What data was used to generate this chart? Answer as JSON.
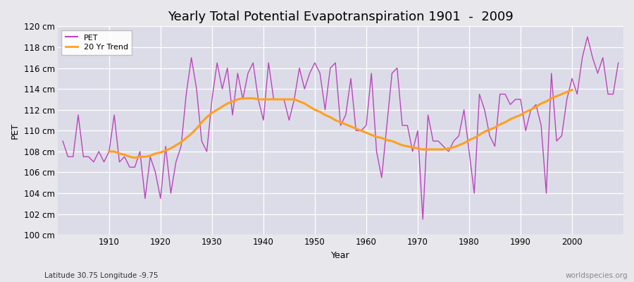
{
  "title": "Yearly Total Potential Evapotranspiration 1901  -  2009",
  "xlabel": "Year",
  "ylabel": "PET",
  "subtitle": "Latitude 30.75 Longitude -9.75",
  "watermark": "worldspecies.org",
  "years": [
    1901,
    1902,
    1903,
    1904,
    1905,
    1906,
    1907,
    1908,
    1909,
    1910,
    1911,
    1912,
    1913,
    1914,
    1915,
    1916,
    1917,
    1918,
    1919,
    1920,
    1921,
    1922,
    1923,
    1924,
    1925,
    1926,
    1927,
    1928,
    1929,
    1930,
    1931,
    1932,
    1933,
    1934,
    1935,
    1936,
    1937,
    1938,
    1939,
    1940,
    1941,
    1942,
    1943,
    1944,
    1945,
    1946,
    1947,
    1948,
    1949,
    1950,
    1951,
    1952,
    1953,
    1954,
    1955,
    1956,
    1957,
    1958,
    1959,
    1960,
    1961,
    1962,
    1963,
    1964,
    1965,
    1966,
    1967,
    1968,
    1969,
    1970,
    1971,
    1972,
    1973,
    1974,
    1975,
    1976,
    1977,
    1978,
    1979,
    1980,
    1981,
    1982,
    1983,
    1984,
    1985,
    1986,
    1987,
    1988,
    1989,
    1990,
    1991,
    1992,
    1993,
    1994,
    1995,
    1996,
    1997,
    1998,
    1999,
    2000,
    2001,
    2002,
    2003,
    2004,
    2005,
    2006,
    2007,
    2008,
    2009
  ],
  "pet": [
    109.0,
    107.5,
    107.5,
    111.5,
    107.5,
    107.5,
    107.0,
    108.0,
    107.0,
    108.0,
    111.5,
    107.0,
    107.5,
    106.5,
    106.5,
    108.0,
    103.5,
    107.5,
    106.0,
    103.5,
    108.5,
    104.0,
    107.0,
    108.5,
    113.5,
    117.0,
    114.0,
    109.0,
    108.0,
    113.0,
    116.5,
    114.0,
    116.0,
    111.5,
    115.5,
    113.0,
    115.5,
    116.5,
    113.0,
    111.0,
    116.5,
    113.0,
    113.0,
    113.0,
    111.0,
    113.0,
    116.0,
    114.0,
    115.5,
    116.5,
    115.5,
    112.0,
    116.0,
    116.5,
    110.5,
    111.5,
    115.0,
    110.0,
    110.0,
    110.5,
    115.5,
    108.0,
    105.5,
    110.5,
    115.5,
    116.0,
    110.5,
    110.5,
    108.0,
    110.0,
    101.5,
    111.5,
    109.0,
    109.0,
    108.5,
    108.0,
    109.0,
    109.5,
    112.0,
    108.0,
    104.0,
    113.5,
    112.0,
    109.5,
    108.5,
    113.5,
    113.5,
    112.5,
    113.0,
    113.0,
    110.0,
    112.0,
    112.5,
    110.5,
    104.0,
    115.5,
    109.0,
    109.5,
    113.0,
    115.0,
    113.5,
    117.0,
    119.0,
    117.0,
    115.5,
    117.0,
    113.5,
    113.5,
    116.5
  ],
  "trend": [
    null,
    null,
    null,
    null,
    null,
    null,
    null,
    null,
    null,
    108.0,
    108.0,
    107.8,
    107.7,
    107.5,
    107.4,
    107.5,
    107.5,
    107.6,
    107.8,
    107.9,
    108.1,
    108.3,
    108.6,
    108.9,
    109.3,
    109.7,
    110.2,
    110.8,
    111.3,
    111.7,
    112.0,
    112.3,
    112.6,
    112.8,
    113.0,
    113.1,
    113.1,
    113.1,
    113.0,
    113.0,
    113.0,
    113.0,
    113.0,
    113.0,
    113.0,
    113.0,
    112.8,
    112.6,
    112.3,
    112.0,
    111.8,
    111.5,
    111.3,
    111.0,
    110.8,
    110.6,
    110.4,
    110.2,
    110.0,
    109.8,
    109.6,
    109.4,
    109.3,
    109.1,
    109.0,
    108.8,
    108.6,
    108.5,
    108.4,
    108.3,
    108.2,
    108.2,
    108.2,
    108.2,
    108.2,
    108.3,
    108.4,
    108.6,
    108.8,
    109.1,
    109.3,
    109.6,
    109.9,
    110.1,
    110.3,
    110.6,
    110.8,
    111.1,
    111.3,
    111.5,
    111.8,
    112.0,
    112.3,
    112.6,
    112.8,
    113.1,
    113.3,
    113.5,
    113.7,
    113.9,
    null,
    null,
    null,
    null,
    null,
    null,
    null,
    null,
    null
  ],
  "pet_color": "#BB44BB",
  "trend_color": "#FFA020",
  "bg_color": "#E8E8EC",
  "plot_bg_color": "#DCDCE8",
  "grid_color": "#FFFFFF",
  "ylim": [
    100,
    120
  ],
  "yticks": [
    100,
    102,
    104,
    106,
    108,
    110,
    112,
    114,
    116,
    118,
    120
  ],
  "ytick_labels": [
    "100 cm",
    "102 cm",
    "104 cm",
    "106 cm",
    "108 cm",
    "110 cm",
    "112 cm",
    "114 cm",
    "116 cm",
    "118 cm",
    "120 cm"
  ],
  "xtick_years": [
    1910,
    1920,
    1930,
    1940,
    1950,
    1960,
    1970,
    1980,
    1990,
    2000
  ],
  "title_fontsize": 13,
  "axis_label_fontsize": 9,
  "tick_fontsize": 8.5
}
